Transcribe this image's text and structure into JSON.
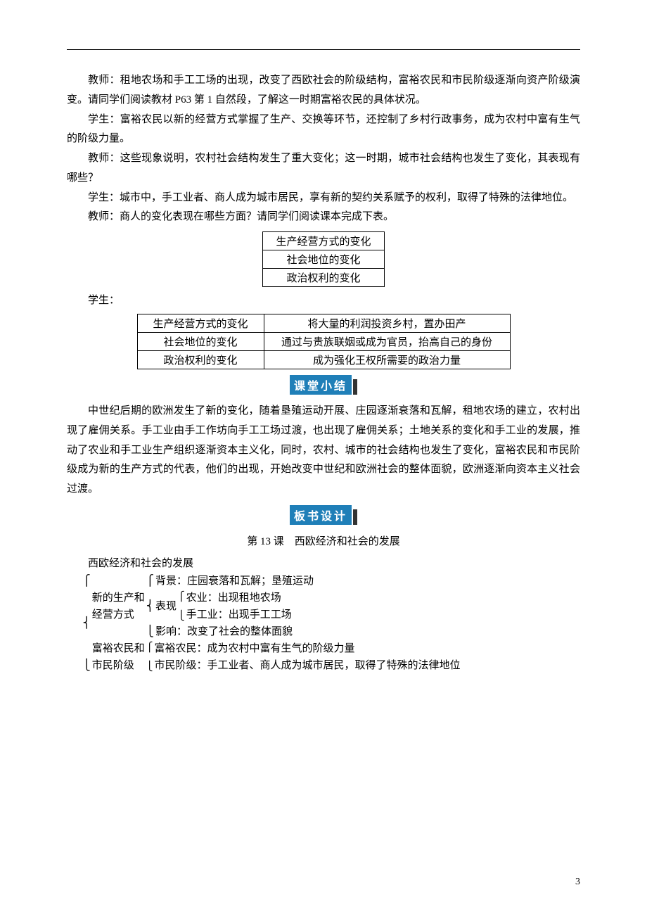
{
  "p1": "教师：租地农场和手工工场的出现，改变了西欧社会的阶级结构，富裕农民和市民阶级逐渐向资产阶级演变。请同学们阅读教材 P63 第 1 自然段，了解这一时期富裕农民的具体状况。",
  "p2": "学生：富裕农民以新的经营方式掌握了生产、交换等环节，还控制了乡村行政事务，成为农村中富有生气的阶级力量。",
  "p3": "教师：这些现象说明，农村社会结构发生了重大变化；这一时期，城市社会结构也发生了变化，其表现有哪些？",
  "p4": "学生：城市中，手工业者、商人成为城市居民，享有新的契约关系赋予的权利，取得了特殊的法律地位。",
  "p5": "教师：商人的变化表现在哪些方面？请同学们阅读课本完成下表。",
  "smallTable": {
    "r1": "生产经营方式的变化",
    "r2": "社会地位的变化",
    "r3": "政治权利的变化"
  },
  "studentLabel": "学生：",
  "wideTable": {
    "r1c1": "生产经营方式的变化",
    "r1c2": "将大量的利润投资乡村，置办田产",
    "r2c1": "社会地位的变化",
    "r2c2": "通过与贵族联姻或成为官员，抬高自己的身份",
    "r3c1": "政治权利的变化",
    "r3c2": "成为强化王权所需要的政治力量"
  },
  "sectionSummary": "课堂小结",
  "summaryPara": "中世纪后期的欧洲发生了新的变化，随着垦殖运动开展、庄园逐渐衰落和瓦解，租地农场的建立，农村出现了雇佣关系。手工业由手工作坊向手工工场过渡，也出现了雇佣关系；土地关系的变化和手工业的发展，推动了农业和手工业生产组织逐渐资本主义化，同时，农村、城市的社会结构也发生了变化，富裕农民和市民阶级成为新的生产方式的代表，他们的出现，开始改变中世纪和欧洲社会的整体面貌，欧洲逐渐向资本主义社会过渡。",
  "sectionBoard": "板书设计",
  "lessonTitle": "第 13 课　西欧经济和社会的发展",
  "outlineHeading": "西欧经济和社会的发展",
  "outline": {
    "group1Label1": "新的生产和",
    "group1Label2": "经营方式",
    "g1_bg": "背景：庄园衰落和瓦解；垦殖运动",
    "g1_bx_label": "表现",
    "g1_bx1": "农业：出现租地农场",
    "g1_bx2": "手工业：出现手工工场",
    "g1_yx": "影响：改变了社会的整体面貌",
    "group2Label1": "富裕农民和",
    "group2Label2": "市民阶级",
    "g2_1": "富裕农民：成为农村中富有生气的阶级力量",
    "g2_2": "市民阶级：手工业者、商人成为城市居民，取得了特殊的法律地位"
  },
  "pageNumber": "3",
  "colors": {
    "headerBg": "#1f7fb8",
    "headerText": "#ffffff",
    "text": "#000000",
    "border": "#000000"
  },
  "fonts": {
    "body": 15,
    "sectionHeader": 16
  }
}
